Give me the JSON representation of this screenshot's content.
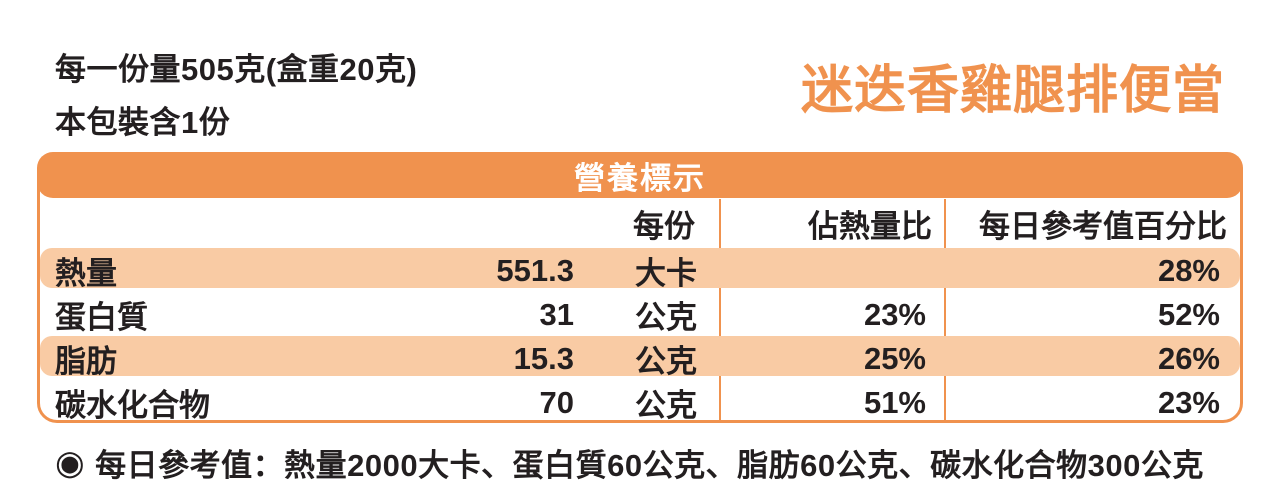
{
  "colors": {
    "orange": "#f0924e",
    "peach": "#f9cba4",
    "text_black": "#231f20",
    "white": "#ffffff"
  },
  "header": {
    "serving_line1": "每一份量505克(盒重20克)",
    "serving_line2": "本包裝含1份",
    "product_title": "迷迭香雞腿排便當"
  },
  "table": {
    "title": "營養標示",
    "columns": {
      "per_serving": "每份",
      "pct_of_calories": "佔熱量比",
      "pct_daily_value": "每日參考值百分比"
    },
    "rows": [
      {
        "label": "熱量",
        "value": "551.3",
        "unit": "大卡",
        "pct_of_calories": "",
        "pct_daily_value": "28%"
      },
      {
        "label": "蛋白質",
        "value": "31",
        "unit": "公克",
        "pct_of_calories": "23%",
        "pct_daily_value": "52%"
      },
      {
        "label": "脂肪",
        "value": "15.3",
        "unit": "公克",
        "pct_of_calories": "25%",
        "pct_daily_value": "26%"
      },
      {
        "label": "碳水化合物",
        "value": "70",
        "unit": "公克",
        "pct_of_calories": "51%",
        "pct_daily_value": "23%"
      }
    ]
  },
  "footnote": {
    "bullet": "◉",
    "text": "每日參考值：熱量2000大卡、蛋白質60公克、脂肪60公克、碳水化合物300公克"
  }
}
